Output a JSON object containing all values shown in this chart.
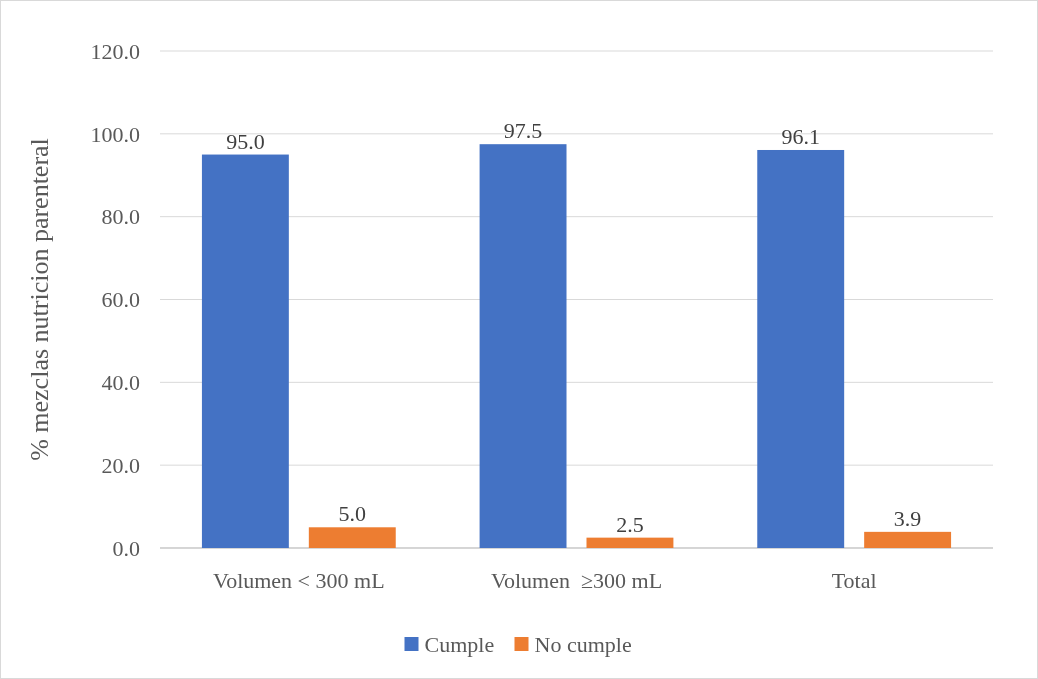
{
  "chart_data": {
    "type": "bar",
    "ylabel": "% mezclas nutricion parenteral",
    "categories": [
      "Volumen < 300 mL",
      "Volumen  ≥300 mL",
      "Total"
    ],
    "series": [
      {
        "name": "Cumple",
        "color": "#4472c4",
        "values": [
          95.0,
          97.5,
          96.1
        ],
        "value_labels": [
          "95.0",
          "97.5",
          "96.1"
        ]
      },
      {
        "name": "No cumple",
        "color": "#ed7d31",
        "values": [
          5.0,
          2.5,
          3.9
        ],
        "value_labels": [
          "5.0",
          "2.5",
          "3.9"
        ]
      }
    ],
    "ylim": [
      0,
      120
    ],
    "yticks": [
      {
        "value": 0,
        "label": "0.0"
      },
      {
        "value": 20,
        "label": "20.0"
      },
      {
        "value": 40,
        "label": "40.0"
      },
      {
        "value": 60,
        "label": "60.0"
      },
      {
        "value": 80,
        "label": "80.0"
      },
      {
        "value": 100,
        "label": "100.0"
      },
      {
        "value": 120,
        "label": "120.0"
      }
    ],
    "grid": "y",
    "legend": "bottom"
  }
}
